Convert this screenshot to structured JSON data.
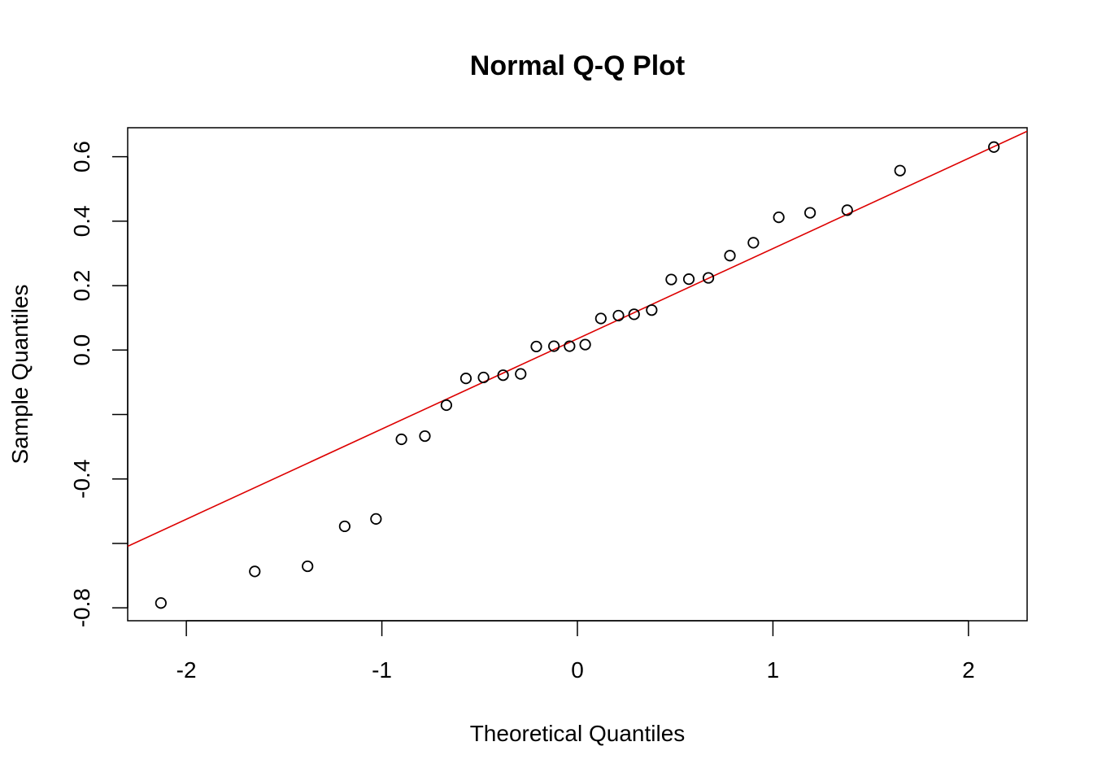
{
  "chart_data": {
    "type": "scatter",
    "title": "Normal Q-Q Plot",
    "xlabel": "Theoretical Quantiles",
    "ylabel": "Sample Quantiles",
    "xlim": [
      -2.3,
      2.3
    ],
    "ylim": [
      -0.84,
      0.69
    ],
    "x_ticks": [
      -2,
      -1,
      0,
      1,
      2
    ],
    "x_tick_labels": [
      "-2",
      "-1",
      "0",
      "1",
      "2"
    ],
    "y_ticks": [
      -0.8,
      -0.6,
      -0.4,
      -0.2,
      0.0,
      0.2,
      0.4,
      0.6
    ],
    "y_tick_labels": [
      "-0.8",
      "",
      "-0.4",
      "",
      "0.0",
      "0.2",
      "0.4",
      "0.6"
    ],
    "grid": false,
    "reference_line": {
      "color": "#dd0000",
      "intercept": 0.035,
      "slope": 0.28
    },
    "points": {
      "marker": "open-circle",
      "color": "#000000",
      "x": [
        -2.13,
        -1.65,
        -1.38,
        -1.19,
        -1.03,
        -0.9,
        -0.78,
        -0.67,
        -0.57,
        -0.48,
        -0.38,
        -0.29,
        -0.21,
        -0.12,
        -0.04,
        0.04,
        0.12,
        0.21,
        0.29,
        0.38,
        0.48,
        0.57,
        0.67,
        0.78,
        0.9,
        1.03,
        1.19,
        1.38,
        1.65,
        2.13
      ],
      "y": [
        -0.785,
        -0.687,
        -0.671,
        -0.547,
        -0.524,
        -0.277,
        -0.267,
        -0.171,
        -0.088,
        -0.085,
        -0.078,
        -0.074,
        0.011,
        0.012,
        0.012,
        0.017,
        0.098,
        0.107,
        0.111,
        0.124,
        0.219,
        0.22,
        0.224,
        0.293,
        0.333,
        0.412,
        0.426,
        0.434,
        0.557,
        0.63
      ]
    }
  }
}
